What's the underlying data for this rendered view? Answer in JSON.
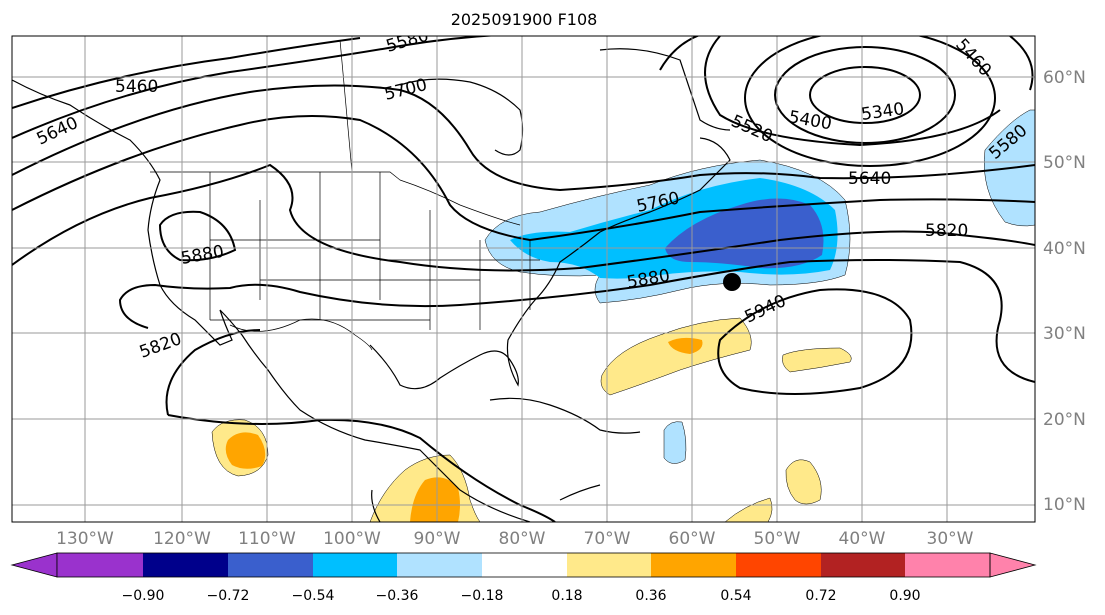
{
  "title": "2025091900 F108",
  "map": {
    "lon_labels": [
      "130°W",
      "120°W",
      "110°W",
      "100°W",
      "90°W",
      "80°W",
      "70°W",
      "60°W",
      "50°W",
      "40°W",
      "30°W"
    ],
    "lat_labels": [
      "60°N",
      "50°N",
      "40°N",
      "30°N",
      "20°N",
      "10°N"
    ],
    "contour_labels": [
      "5580",
      "5700",
      "5460",
      "5520",
      "5640",
      "5400",
      "5340",
      "5460",
      "5580",
      "5640",
      "5820",
      "5760",
      "5880",
      "5880",
      "5940",
      "5820"
    ],
    "marker": {
      "name": "storm-center",
      "lon": -55.6,
      "lat": 36.2
    },
    "colors": {
      "contour": "#000000",
      "grid": "#9a9a9a"
    }
  },
  "colorbar": {
    "tick_labels": [
      "−0.90",
      "−0.72",
      "−0.54",
      "−0.36",
      "−0.18",
      "0.18",
      "0.36",
      "0.54",
      "0.72",
      "0.90"
    ],
    "colors": [
      "#9a32cd",
      "#00008b",
      "#3a5fcd",
      "#00bfff",
      "#b0e2ff",
      "#ffffff",
      "#ffe98a",
      "#ffa500",
      "#ff4500",
      "#b22222",
      "#ff82ab"
    ]
  }
}
